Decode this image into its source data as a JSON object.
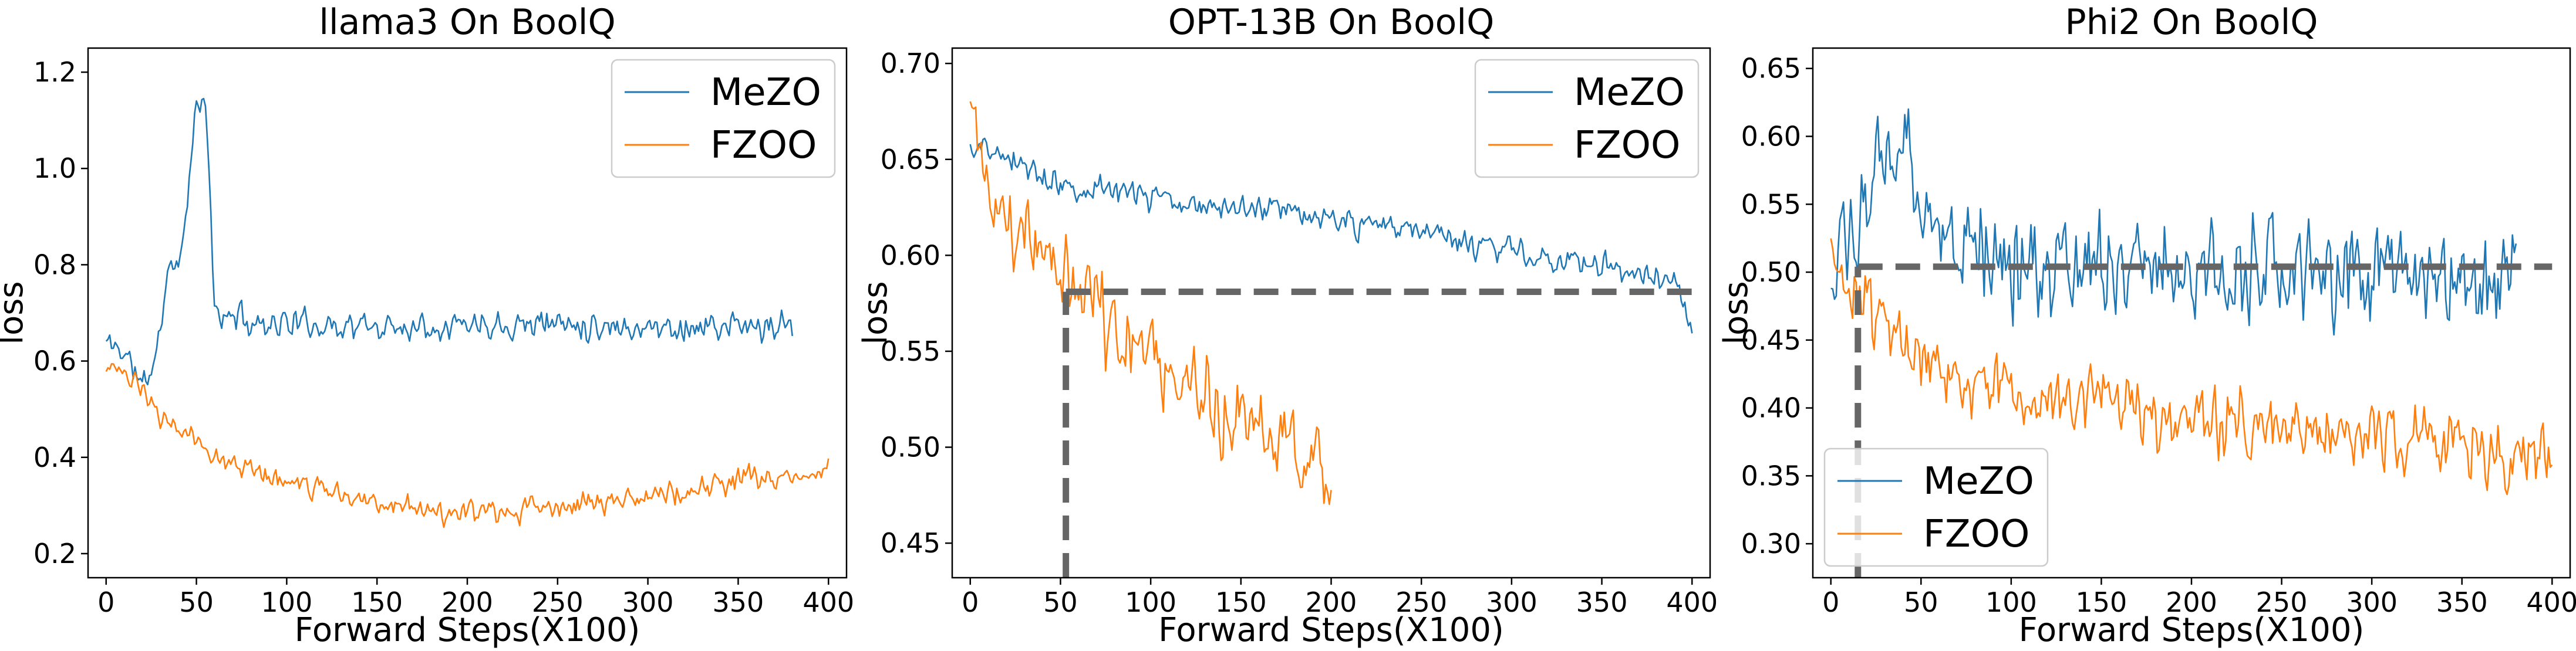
{
  "colors": {
    "MeZO": "#1f77b4",
    "FZOO": "#ff7f0e",
    "reference": "#666666"
  },
  "chart_data": [
    {
      "type": "line",
      "title": "llama3 On BoolQ",
      "xlabel": "Forward Steps(X100)",
      "ylabel": "loss",
      "xlim": [
        -10,
        410
      ],
      "ylim": [
        0.15,
        1.25
      ],
      "xticks": [
        "0",
        "50",
        "100",
        "150",
        "200",
        "250",
        "300",
        "350",
        "400"
      ],
      "yticks": [
        "0.2",
        "0.4",
        "0.6",
        "0.8",
        "1.0",
        "1.2"
      ],
      "legend": "top-right",
      "series": [
        {
          "name": "MeZO",
          "color": "#1f77b4",
          "noise": 0.03,
          "seed": 11,
          "x": [
            0,
            10,
            20,
            25,
            30,
            35,
            40,
            45,
            50,
            55,
            60,
            65,
            70,
            80,
            100,
            150,
            200,
            250,
            300,
            350,
            380
          ],
          "y": [
            0.64,
            0.62,
            0.55,
            0.58,
            0.66,
            0.82,
            0.78,
            0.95,
            1.12,
            1.14,
            0.72,
            0.68,
            0.7,
            0.68,
            0.68,
            0.67,
            0.68,
            0.68,
            0.67,
            0.67,
            0.67
          ]
        },
        {
          "name": "FZOO",
          "color": "#ff7f0e",
          "noise": 0.025,
          "seed": 23,
          "x": [
            0,
            10,
            20,
            30,
            50,
            75,
            100,
            125,
            150,
            175,
            200,
            225,
            250,
            275,
            300,
            325,
            350,
            375,
            400
          ],
          "y": [
            0.6,
            0.57,
            0.53,
            0.49,
            0.43,
            0.38,
            0.35,
            0.33,
            0.31,
            0.29,
            0.28,
            0.29,
            0.3,
            0.31,
            0.32,
            0.33,
            0.35,
            0.36,
            0.37
          ]
        }
      ]
    },
    {
      "type": "line",
      "title": "OPT-13B On BoolQ",
      "xlabel": "Forward Steps(X100)",
      "ylabel": "loss",
      "xlim": [
        -10,
        410
      ],
      "ylim": [
        0.432,
        0.708
      ],
      "xticks": [
        "0",
        "50",
        "100",
        "150",
        "200",
        "250",
        "300",
        "350",
        "400"
      ],
      "yticks": [
        "0.45",
        "0.50",
        "0.55",
        "0.60",
        "0.65",
        "0.70"
      ],
      "legend": "top-right",
      "reference": {
        "x": 53,
        "y": 0.581
      },
      "series": [
        {
          "name": "MeZO",
          "color": "#1f77b4",
          "noise": 0.007,
          "seed": 37,
          "x": [
            0,
            10,
            50,
            100,
            150,
            200,
            250,
            300,
            350,
            390,
            400
          ],
          "y": [
            0.655,
            0.655,
            0.638,
            0.63,
            0.625,
            0.618,
            0.612,
            0.602,
            0.594,
            0.588,
            0.56
          ]
        },
        {
          "name": "FZOO",
          "color": "#ff7f0e",
          "noise": 0.022,
          "seed": 41,
          "x": [
            0,
            5,
            10,
            20,
            30,
            50,
            75,
            100,
            125,
            150,
            175,
            200
          ],
          "y": [
            0.67,
            0.655,
            0.64,
            0.62,
            0.61,
            0.59,
            0.57,
            0.545,
            0.53,
            0.515,
            0.5,
            0.48
          ]
        }
      ]
    },
    {
      "type": "line",
      "title": "Phi2 On BoolQ",
      "xlabel": "Forward Steps(X100)",
      "ylabel": "loss",
      "xlim": [
        -10,
        410
      ],
      "ylim": [
        0.275,
        0.665
      ],
      "xticks": [
        "0",
        "50",
        "100",
        "150",
        "200",
        "250",
        "300",
        "350",
        "400"
      ],
      "yticks": [
        "0.30",
        "0.35",
        "0.40",
        "0.45",
        "0.50",
        "0.55",
        "0.60",
        "0.65"
      ],
      "legend": "bottom-left",
      "reference": {
        "x": 15,
        "y": 0.504
      },
      "series": [
        {
          "name": "MeZO",
          "color": "#1f77b4",
          "noise": 0.038,
          "seed": 53,
          "x": [
            0,
            10,
            20,
            30,
            40,
            50,
            75,
            100,
            150,
            200,
            250,
            300,
            350,
            380
          ],
          "y": [
            0.5,
            0.52,
            0.55,
            0.58,
            0.6,
            0.56,
            0.52,
            0.51,
            0.5,
            0.5,
            0.5,
            0.5,
            0.5,
            0.49
          ]
        },
        {
          "name": "FZOO",
          "color": "#ff7f0e",
          "noise": 0.026,
          "seed": 67,
          "x": [
            0,
            10,
            20,
            30,
            50,
            75,
            100,
            150,
            200,
            250,
            300,
            350,
            400
          ],
          "y": [
            0.51,
            0.49,
            0.47,
            0.46,
            0.44,
            0.42,
            0.41,
            0.4,
            0.39,
            0.385,
            0.38,
            0.375,
            0.36
          ]
        }
      ]
    }
  ]
}
